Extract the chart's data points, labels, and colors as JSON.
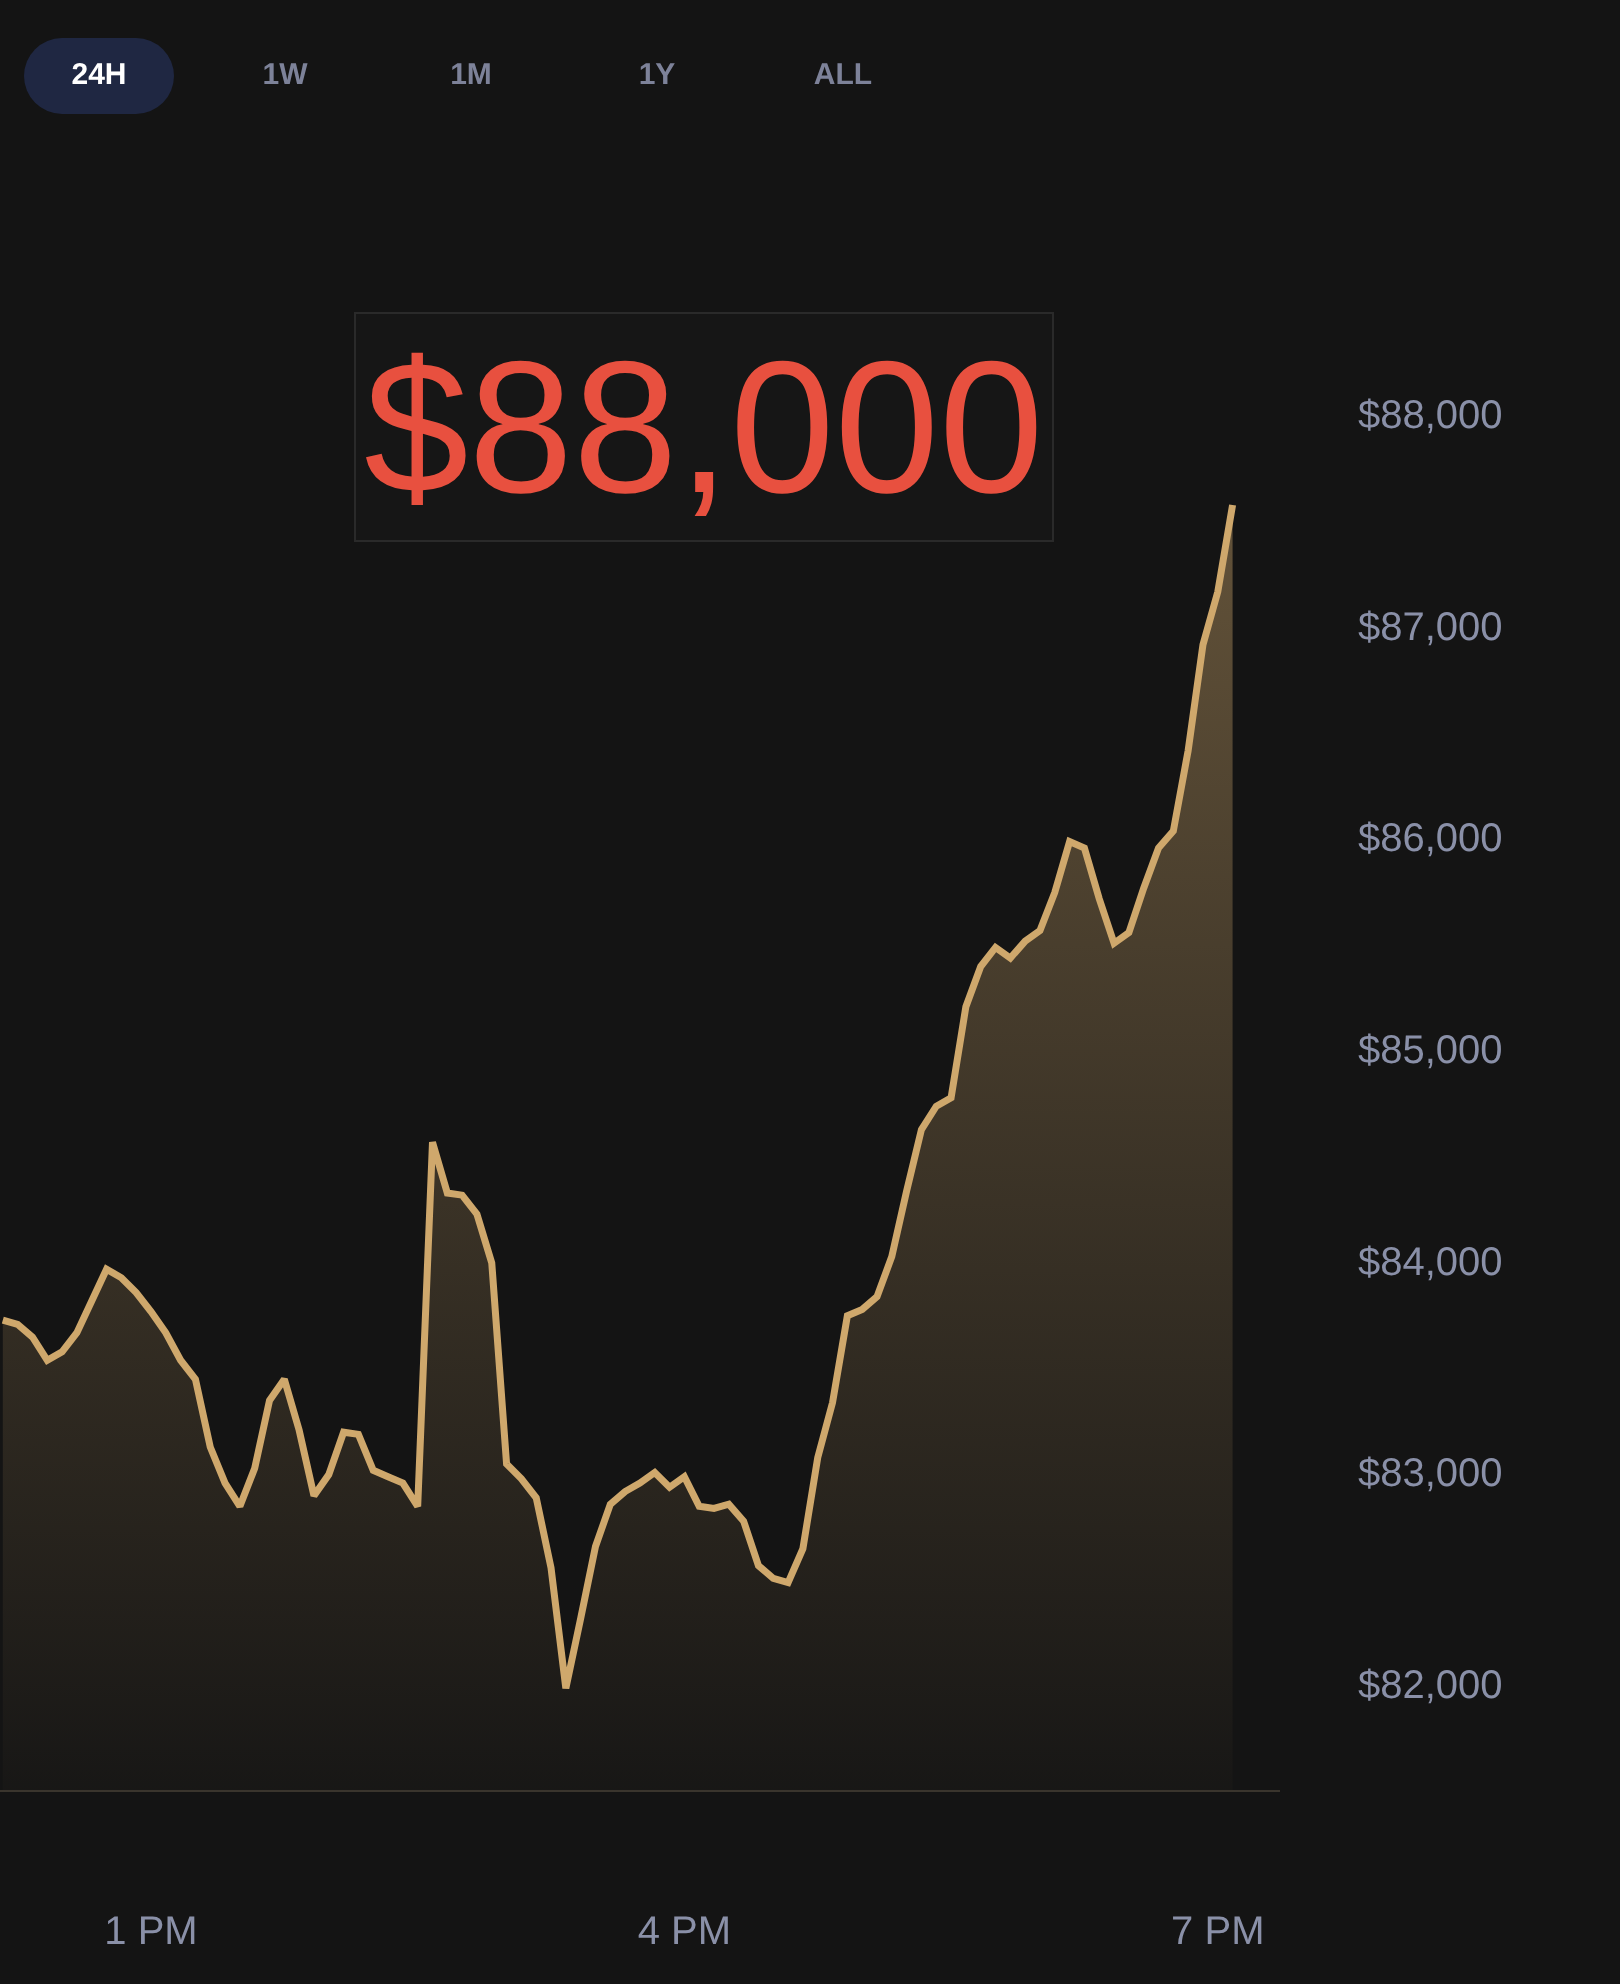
{
  "chart_data": {
    "type": "area",
    "annotations": [
      "24H",
      "1W",
      "1M",
      "1Y",
      "ALL",
      "$88,000"
    ],
    "categories": [
      null,
      null,
      null,
      null,
      null,
      null,
      null,
      null,
      null,
      null,
      "1 PM",
      null,
      null,
      null,
      null,
      null,
      null,
      null,
      null,
      null,
      null,
      null,
      null,
      null,
      null,
      null,
      null,
      null,
      null,
      null,
      null,
      null,
      null,
      null,
      null,
      null,
      null,
      null,
      null,
      null,
      null,
      null,
      null,
      null,
      null,
      null,
      "4 PM",
      null,
      null,
      null,
      null,
      null,
      null,
      null,
      null,
      null,
      null,
      null,
      null,
      null,
      null,
      null,
      null,
      null,
      null,
      null,
      null,
      null,
      null,
      null,
      null,
      null,
      null,
      null,
      null,
      null,
      null,
      null,
      null,
      null,
      null,
      null,
      "7 PM",
      null
    ],
    "series": [
      {
        "color": "#cfa86c",
        "values": [
          83720,
          83700,
          83640,
          83530,
          83570,
          83660,
          83810,
          83960,
          83920,
          83850,
          83760,
          83660,
          83530,
          83440,
          83120,
          82950,
          82840,
          83020,
          83340,
          83440,
          83200,
          82890,
          82990,
          83190,
          83180,
          83010,
          82980,
          82950,
          82840,
          84560,
          84320,
          84310,
          84220,
          83990,
          83040,
          82970,
          82880,
          82550,
          81980,
          82310,
          82650,
          82850,
          82910,
          82950,
          83000,
          82930,
          82980,
          82840,
          82830,
          82850,
          82770,
          82560,
          82500,
          82480,
          82640,
          83070,
          83330,
          83740,
          83770,
          83830,
          84020,
          84330,
          84620,
          84730,
          84770,
          85200,
          85390,
          85480,
          85430,
          85510,
          85560,
          85740,
          85980,
          85950,
          85710,
          85500,
          85550,
          85760,
          85950,
          86030,
          86410,
          86910,
          87160,
          87570
        ]
      }
    ],
    "ylim": [
      81500,
      88000
    ],
    "yticks": [
      {
        "value": 82000,
        "label": "$82,000"
      },
      {
        "value": 83000,
        "label": "$83,000"
      },
      {
        "value": 84000,
        "label": "$84,000"
      },
      {
        "value": 85000,
        "label": "$85,000"
      },
      {
        "value": 86000,
        "label": "$86,000"
      },
      {
        "value": 87000,
        "label": "$87,000"
      },
      {
        "value": 88000,
        "label": "$88,000"
      }
    ]
  }
}
